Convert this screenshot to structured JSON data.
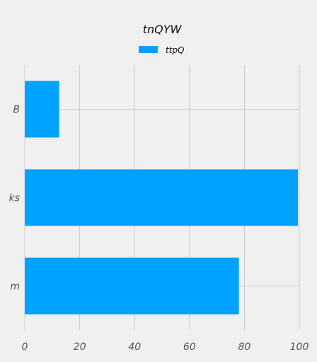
{
  "chart_data": {
    "type": "bar",
    "orientation": "horizontal",
    "title": "tnQYW",
    "xlabel": "",
    "ylabel": "",
    "categories": [
      "B",
      "ks",
      "m"
    ],
    "series": [
      {
        "name": "ttpQ",
        "values": [
          12.5,
          99.5,
          78.0
        ],
        "color": "#00a2ff"
      }
    ],
    "xlim": [
      0,
      100
    ],
    "xticks": [
      0,
      20,
      40,
      60,
      80,
      100
    ],
    "grid": true,
    "legend": "top-center"
  },
  "colors": {
    "background": "#f0f0f0",
    "grid": "#cbcbcb",
    "bar": "#00a2ff"
  }
}
